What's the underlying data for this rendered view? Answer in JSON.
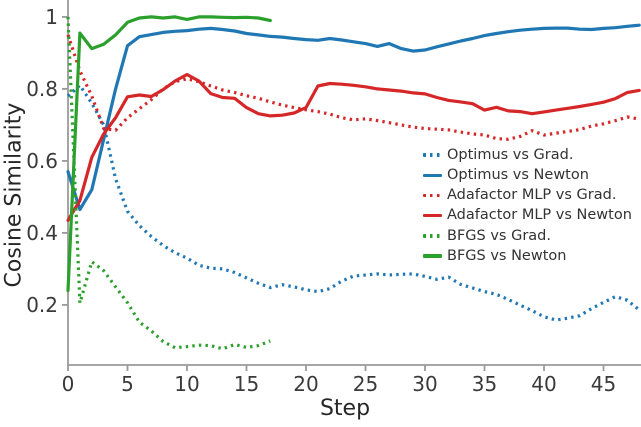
{
  "chart_data": {
    "type": "line",
    "title": "",
    "xlabel": "Step",
    "ylabel": "Cosine Similarity",
    "xlim": [
      0,
      48.15
    ],
    "ylim": [
      0.033,
      1.047
    ],
    "x_ticks": [
      0,
      5,
      10,
      15,
      20,
      25,
      30,
      35,
      40,
      45
    ],
    "x_tick_labels": [
      "0",
      "5",
      "10",
      "15",
      "20",
      "25",
      "30",
      "35",
      "40",
      "45"
    ],
    "y_ticks": [
      0.2,
      0.4,
      0.6,
      0.8,
      1.0
    ],
    "y_tick_labels": [
      "0.2",
      "0.4",
      "0.6",
      "0.8",
      "1"
    ],
    "grid": false,
    "legend_position": "center-right",
    "axis_color": "#9a9a9a",
    "tick_label_color": "#3a3a3a",
    "label_color": "#262626",
    "series": [
      {
        "name": "Optimus vs Grad.",
        "color": "#1f77b4",
        "style": "dotted",
        "x_start": 0,
        "values": [
          0.78,
          0.81,
          0.76,
          0.7,
          0.55,
          0.46,
          0.42,
          0.39,
          0.365,
          0.345,
          0.33,
          0.31,
          0.302,
          0.3,
          0.29,
          0.275,
          0.26,
          0.248,
          0.256,
          0.25,
          0.242,
          0.237,
          0.245,
          0.266,
          0.28,
          0.283,
          0.286,
          0.283,
          0.285,
          0.286,
          0.279,
          0.271,
          0.277,
          0.257,
          0.247,
          0.237,
          0.229,
          0.215,
          0.199,
          0.184,
          0.167,
          0.158,
          0.163,
          0.17,
          0.19,
          0.207,
          0.223,
          0.213,
          0.186
        ]
      },
      {
        "name": "Optimus vs Newton",
        "color": "#1f77b4",
        "style": "solid",
        "x_start": 0,
        "values": [
          0.57,
          0.465,
          0.52,
          0.66,
          0.8,
          0.92,
          0.945,
          0.951,
          0.957,
          0.96,
          0.962,
          0.966,
          0.968,
          0.965,
          0.961,
          0.954,
          0.95,
          0.946,
          0.944,
          0.94,
          0.937,
          0.935,
          0.94,
          0.936,
          0.931,
          0.926,
          0.918,
          0.926,
          0.912,
          0.905,
          0.908,
          0.917,
          0.925,
          0.933,
          0.94,
          0.948,
          0.954,
          0.959,
          0.963,
          0.966,
          0.968,
          0.969,
          0.969,
          0.966,
          0.965,
          0.968,
          0.97,
          0.974,
          0.977
        ]
      },
      {
        "name": "Adafactor MLP vs Grad.",
        "color": "#d62728",
        "style": "dotted",
        "x_start": 0,
        "values": [
          0.95,
          0.85,
          0.78,
          0.69,
          0.685,
          0.72,
          0.745,
          0.77,
          0.8,
          0.82,
          0.828,
          0.82,
          0.808,
          0.797,
          0.79,
          0.781,
          0.774,
          0.764,
          0.755,
          0.748,
          0.742,
          0.737,
          0.73,
          0.72,
          0.714,
          0.717,
          0.712,
          0.706,
          0.7,
          0.694,
          0.69,
          0.688,
          0.686,
          0.68,
          0.675,
          0.672,
          0.662,
          0.66,
          0.668,
          0.684,
          0.672,
          0.677,
          0.682,
          0.687,
          0.697,
          0.703,
          0.712,
          0.722,
          0.716
        ]
      },
      {
        "name": "Adafactor MLP vs Newton",
        "color": "#d62728",
        "style": "solid",
        "x_start": 0,
        "values": [
          0.435,
          0.49,
          0.61,
          0.675,
          0.72,
          0.778,
          0.783,
          0.779,
          0.798,
          0.822,
          0.84,
          0.822,
          0.787,
          0.776,
          0.774,
          0.748,
          0.731,
          0.725,
          0.727,
          0.733,
          0.748,
          0.808,
          0.815,
          0.813,
          0.81,
          0.806,
          0.8,
          0.797,
          0.794,
          0.789,
          0.786,
          0.776,
          0.768,
          0.764,
          0.759,
          0.741,
          0.749,
          0.739,
          0.737,
          0.731,
          0.736,
          0.741,
          0.746,
          0.751,
          0.757,
          0.763,
          0.773,
          0.79,
          0.796
        ]
      },
      {
        "name": "BFGS vs Grad.",
        "color": "#2ca02c",
        "style": "dotted",
        "x_start": 0,
        "values": [
          1.0,
          0.205,
          0.32,
          0.295,
          0.25,
          0.206,
          0.152,
          0.128,
          0.098,
          0.081,
          0.084,
          0.088,
          0.087,
          0.078,
          0.09,
          0.082,
          0.087,
          0.1
        ]
      },
      {
        "name": "BFGS vs Newton",
        "color": "#2ca02c",
        "style": "solid",
        "x_start": 0,
        "values": [
          0.24,
          0.955,
          0.912,
          0.924,
          0.95,
          0.985,
          0.997,
          1.0,
          0.997,
          1.0,
          0.993,
          1.0,
          1.0,
          0.999,
          0.998,
          0.999,
          0.997,
          0.99
        ]
      }
    ]
  }
}
